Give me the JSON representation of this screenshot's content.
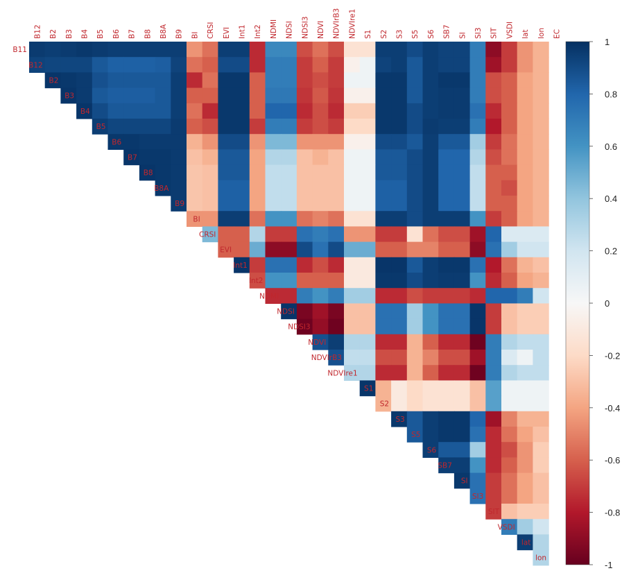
{
  "chart_data": {
    "type": "heatmap",
    "variables": [
      "B11",
      "B12",
      "B2",
      "B3",
      "B4",
      "B5",
      "B6",
      "B7",
      "B8",
      "B8A",
      "B9",
      "BI",
      "CRSI",
      "EVI",
      "Int1",
      "Int2",
      "NDMI",
      "NDSI",
      "NDSI3",
      "NDVI",
      "NDVIrB3",
      "NDVIre1",
      "S1",
      "S2",
      "S3",
      "S5",
      "S6",
      "SB7",
      "SI",
      "SI3",
      "SIT",
      "VSDI",
      "lat",
      "lon",
      "EC"
    ],
    "row_labels": [
      "B11",
      "B12",
      "B2",
      "B3",
      "B4",
      "B5",
      "B6",
      "B7",
      "B8",
      "B8A",
      "B9",
      "BI",
      "CRSI",
      "EVI",
      "Int1",
      "Int2",
      "NDMI",
      "NDSI",
      "NDSI3",
      "NDVI",
      "NDVIrB3",
      "NDVIre1",
      "S1",
      "S2",
      "S3",
      "S5",
      "S6",
      "SB7",
      "SI",
      "SI3",
      "SIT",
      "VSDI",
      "lat",
      "lon"
    ],
    "col_labels": [
      "B12",
      "B2",
      "B3",
      "B4",
      "B5",
      "B6",
      "B7",
      "B8",
      "B8A",
      "B9",
      "BI",
      "CRSI",
      "EVI",
      "Int1",
      "Int2",
      "NDMI",
      "NDSI",
      "NDSI3",
      "NDVI",
      "NDVIrB3",
      "NDVIre1",
      "S1",
      "S2",
      "S3",
      "S5",
      "S6",
      "SB7",
      "SI",
      "SI3",
      "SIT",
      "VSDI",
      "lat",
      "lon",
      "EC"
    ],
    "layout": "upper-triangle",
    "colorbar": {
      "range": [
        -1,
        1
      ],
      "ticks": [
        "1",
        "0.8",
        "0.6",
        "0.4",
        "0.2",
        "0",
        "-0.2",
        "-0.4",
        "-0.6",
        "-0.8",
        "-1"
      ]
    },
    "colors": {
      "negative": "#67001f",
      "zero": "#f7f7f7",
      "positive": "#053061"
    },
    "values": [
      [
        0.96,
        0.95,
        0.96,
        0.97,
        0.96,
        0.95,
        0.95,
        0.95,
        0.95,
        0.95,
        -0.45,
        -0.55,
        0.95,
        0.95,
        -0.75,
        0.65,
        0.65,
        -0.65,
        -0.55,
        -0.65,
        -0.15,
        -0.15,
        0.95,
        0.95,
        0.9,
        0.95,
        0.93,
        0.93,
        0.7,
        -0.9,
        -0.7,
        -0.45,
        -0.35
      ],
      [
        0.93,
        0.92,
        0.92,
        0.92,
        0.85,
        0.82,
        0.82,
        0.82,
        0.83,
        0.93,
        -0.55,
        -0.6,
        0.9,
        0.9,
        -0.75,
        0.7,
        0.7,
        -0.7,
        -0.6,
        -0.7,
        -0.05,
        0.05,
        0.93,
        0.95,
        0.85,
        0.95,
        0.93,
        0.93,
        0.7,
        -0.85,
        -0.7,
        -0.45,
        -0.35
      ],
      [
        null,
        0.98,
        0.97,
        0.96,
        0.88,
        0.85,
        0.85,
        0.85,
        0.85,
        0.95,
        -0.75,
        -0.55,
        0.97,
        0.97,
        -0.6,
        0.7,
        0.7,
        -0.7,
        -0.65,
        -0.7,
        0.05,
        0.05,
        0.97,
        0.97,
        0.85,
        0.95,
        0.97,
        0.97,
        0.7,
        -0.65,
        -0.6,
        -0.4,
        -0.35
      ],
      [
        null,
        null,
        0.98,
        0.96,
        0.85,
        0.83,
        0.83,
        0.83,
        0.85,
        0.95,
        -0.6,
        -0.6,
        0.97,
        0.97,
        -0.6,
        0.72,
        0.72,
        -0.72,
        -0.62,
        -0.72,
        -0.05,
        -0.05,
        0.97,
        0.97,
        0.85,
        0.95,
        0.96,
        0.96,
        0.7,
        -0.65,
        -0.6,
        -0.4,
        -0.35
      ],
      [
        null,
        null,
        null,
        0.98,
        0.9,
        0.85,
        0.85,
        0.85,
        0.85,
        0.95,
        -0.55,
        -0.75,
        0.97,
        0.97,
        -0.6,
        0.8,
        0.8,
        -0.75,
        -0.65,
        -0.75,
        -0.25,
        -0.25,
        0.97,
        0.97,
        0.9,
        0.95,
        0.96,
        0.96,
        0.75,
        -0.75,
        -0.6,
        -0.4,
        -0.35
      ],
      [
        null,
        null,
        null,
        null,
        0.95,
        0.92,
        0.92,
        0.92,
        0.92,
        0.96,
        -0.6,
        -0.65,
        0.97,
        0.97,
        -0.7,
        0.7,
        0.7,
        -0.7,
        -0.65,
        -0.7,
        -0.2,
        -0.2,
        0.97,
        0.97,
        0.9,
        0.96,
        0.95,
        0.95,
        0.7,
        -0.8,
        -0.6,
        -0.4,
        -0.35
      ],
      [
        null,
        null,
        null,
        null,
        null,
        0.97,
        0.97,
        0.96,
        0.96,
        0.96,
        -0.35,
        -0.45,
        0.9,
        0.9,
        -0.45,
        0.45,
        0.45,
        -0.45,
        -0.45,
        -0.45,
        -0.05,
        -0.05,
        0.9,
        0.9,
        0.85,
        0.95,
        0.85,
        0.85,
        0.35,
        -0.7,
        -0.55,
        -0.4,
        -0.35
      ],
      [
        null,
        null,
        null,
        null,
        null,
        null,
        0.98,
        0.97,
        0.97,
        0.96,
        -0.3,
        -0.35,
        0.85,
        0.85,
        -0.4,
        0.3,
        0.3,
        -0.3,
        -0.35,
        -0.3,
        0.05,
        0.05,
        0.85,
        0.85,
        0.9,
        0.95,
        0.8,
        0.8,
        0.3,
        -0.65,
        -0.55,
        -0.4,
        -0.35
      ],
      [
        null,
        null,
        null,
        null,
        null,
        null,
        null,
        0.98,
        0.97,
        0.96,
        -0.28,
        -0.3,
        0.85,
        0.85,
        -0.4,
        0.25,
        0.25,
        -0.3,
        -0.3,
        -0.3,
        0.05,
        0.05,
        0.85,
        0.85,
        0.9,
        0.95,
        0.8,
        0.8,
        0.25,
        -0.6,
        -0.6,
        -0.4,
        -0.35
      ],
      [
        null,
        null,
        null,
        null,
        null,
        null,
        null,
        null,
        0.97,
        0.96,
        -0.28,
        -0.3,
        0.82,
        0.82,
        -0.4,
        0.25,
        0.25,
        -0.3,
        -0.3,
        -0.3,
        0.05,
        0.05,
        0.82,
        0.82,
        0.9,
        0.95,
        0.8,
        0.8,
        0.25,
        -0.6,
        -0.65,
        -0.4,
        -0.35
      ],
      [
        null,
        null,
        null,
        null,
        null,
        null,
        null,
        null,
        null,
        0.96,
        -0.28,
        -0.3,
        0.82,
        0.82,
        -0.4,
        0.25,
        0.25,
        -0.3,
        -0.3,
        -0.3,
        0.05,
        0.05,
        0.82,
        0.82,
        0.9,
        0.95,
        0.8,
        0.8,
        0.25,
        -0.6,
        -0.6,
        -0.4,
        -0.35
      ],
      [
        null,
        null,
        null,
        null,
        null,
        null,
        null,
        null,
        null,
        null,
        -0.45,
        -0.45,
        0.95,
        0.95,
        -0.55,
        0.6,
        0.6,
        -0.55,
        -0.5,
        -0.55,
        -0.15,
        -0.15,
        0.95,
        0.95,
        0.9,
        0.95,
        0.95,
        0.95,
        0.6,
        -0.7,
        -0.6,
        -0.4,
        -0.35
      ],
      [
        null,
        null,
        null,
        null,
        null,
        null,
        null,
        null,
        null,
        null,
        null,
        0.45,
        -0.6,
        -0.6,
        0.3,
        -0.7,
        -0.7,
        0.75,
        0.7,
        0.75,
        -0.45,
        -0.45,
        -0.7,
        -0.7,
        -0.15,
        -0.55,
        -0.65,
        -0.65,
        -0.85,
        0.8,
        0.15,
        0.15,
        0.15
      ],
      [
        null,
        null,
        null,
        null,
        null,
        null,
        null,
        null,
        null,
        null,
        null,
        null,
        -0.6,
        -0.6,
        0.5,
        -0.9,
        -0.9,
        0.9,
        0.75,
        0.9,
        0.5,
        0.5,
        -0.6,
        -0.6,
        -0.5,
        -0.5,
        -0.6,
        -0.6,
        -0.9,
        0.75,
        0.35,
        0.2,
        0.2
      ],
      [
        null,
        null,
        null,
        null,
        null,
        null,
        null,
        null,
        null,
        null,
        null,
        null,
        null,
        0.98,
        -0.7,
        0.75,
        0.75,
        -0.75,
        -0.65,
        -0.75,
        -0.1,
        -0.1,
        0.98,
        0.98,
        0.85,
        0.95,
        0.97,
        0.97,
        0.75,
        -0.8,
        -0.55,
        -0.35,
        -0.3
      ],
      [
        null,
        null,
        null,
        null,
        null,
        null,
        null,
        null,
        null,
        null,
        null,
        null,
        null,
        null,
        -0.65,
        0.6,
        0.6,
        -0.6,
        -0.6,
        -0.6,
        -0.1,
        -0.1,
        0.97,
        0.97,
        0.9,
        0.95,
        0.96,
        0.96,
        0.6,
        -0.75,
        -0.6,
        -0.4,
        -0.35
      ],
      [
        null,
        null,
        null,
        null,
        null,
        null,
        null,
        null,
        null,
        null,
        null,
        null,
        null,
        null,
        null,
        -0.75,
        -0.75,
        0.7,
        0.6,
        0.7,
        0.35,
        0.35,
        -0.75,
        -0.75,
        -0.65,
        -0.7,
        -0.7,
        -0.7,
        -0.75,
        0.8,
        0.8,
        0.7,
        0.2
      ],
      [
        null,
        null,
        null,
        null,
        null,
        null,
        null,
        null,
        null,
        null,
        null,
        null,
        null,
        null,
        null,
        null,
        0.98,
        -0.95,
        -0.85,
        -0.95,
        -0.3,
        -0.3,
        0.75,
        0.75,
        0.35,
        0.6,
        0.75,
        0.75,
        0.98,
        -0.7,
        -0.3,
        -0.25,
        -0.25
      ],
      [
        null,
        null,
        null,
        null,
        null,
        null,
        null,
        null,
        null,
        null,
        null,
        null,
        null,
        null,
        null,
        null,
        null,
        -0.98,
        -0.88,
        -0.98,
        -0.3,
        -0.3,
        0.75,
        0.75,
        0.35,
        0.6,
        0.75,
        0.75,
        0.98,
        -0.7,
        -0.3,
        -0.25,
        -0.25
      ],
      [
        null,
        null,
        null,
        null,
        null,
        null,
        null,
        null,
        null,
        null,
        null,
        null,
        null,
        null,
        null,
        null,
        null,
        null,
        0.88,
        0.95,
        0.3,
        0.3,
        -0.75,
        -0.75,
        -0.35,
        -0.6,
        -0.75,
        -0.75,
        -0.98,
        0.7,
        0.3,
        0.25,
        0.25
      ],
      [
        null,
        null,
        null,
        null,
        null,
        null,
        null,
        null,
        null,
        null,
        null,
        null,
        null,
        null,
        null,
        null,
        null,
        null,
        null,
        0.88,
        0.25,
        0.25,
        -0.65,
        -0.65,
        -0.35,
        -0.5,
        -0.65,
        -0.65,
        -0.85,
        0.7,
        0.15,
        0.05,
        0.25
      ],
      [
        null,
        null,
        null,
        null,
        null,
        null,
        null,
        null,
        null,
        null,
        null,
        null,
        null,
        null,
        null,
        null,
        null,
        null,
        null,
        null,
        0.3,
        0.3,
        -0.75,
        -0.75,
        -0.35,
        -0.6,
        -0.75,
        -0.75,
        -0.98,
        0.7,
        0.3,
        0.25,
        0.25
      ],
      [
        null,
        null,
        null,
        null,
        null,
        null,
        null,
        null,
        null,
        null,
        null,
        null,
        null,
        null,
        null,
        null,
        null,
        null,
        null,
        null,
        null,
        0.98,
        -0.35,
        -0.1,
        -0.2,
        -0.15,
        -0.15,
        -0.15,
        -0.3,
        0.55,
        0.05,
        0.05,
        0.05
      ],
      [
        null,
        null,
        null,
        null,
        null,
        null,
        null,
        null,
        null,
        null,
        null,
        null,
        null,
        null,
        null,
        null,
        null,
        null,
        null,
        null,
        null,
        null,
        -0.35,
        -0.1,
        -0.2,
        -0.15,
        -0.15,
        -0.15,
        -0.3,
        0.55,
        0.05,
        0.05,
        0.05
      ],
      [
        null,
        null,
        null,
        null,
        null,
        null,
        null,
        null,
        null,
        null,
        null,
        null,
        null,
        null,
        null,
        null,
        null,
        null,
        null,
        null,
        null,
        null,
        null,
        0.97,
        0.85,
        0.95,
        0.97,
        0.97,
        0.8,
        -0.85,
        -0.5,
        -0.35,
        -0.35
      ],
      [
        null,
        null,
        null,
        null,
        null,
        null,
        null,
        null,
        null,
        null,
        null,
        null,
        null,
        null,
        null,
        null,
        null,
        null,
        null,
        null,
        null,
        null,
        null,
        null,
        0.85,
        0.95,
        0.97,
        0.97,
        0.75,
        -0.75,
        -0.55,
        -0.4,
        -0.3
      ],
      [
        null,
        null,
        null,
        null,
        null,
        null,
        null,
        null,
        null,
        null,
        null,
        null,
        null,
        null,
        null,
        null,
        null,
        null,
        null,
        null,
        null,
        null,
        null,
        null,
        null,
        0.95,
        0.85,
        0.85,
        0.35,
        -0.75,
        -0.65,
        -0.45,
        -0.25
      ],
      [
        null,
        null,
        null,
        null,
        null,
        null,
        null,
        null,
        null,
        null,
        null,
        null,
        null,
        null,
        null,
        null,
        null,
        null,
        null,
        null,
        null,
        null,
        null,
        null,
        null,
        null,
        0.95,
        0.95,
        0.6,
        -0.75,
        -0.6,
        -0.45,
        -0.25
      ],
      [
        null,
        null,
        null,
        null,
        null,
        null,
        null,
        null,
        null,
        null,
        null,
        null,
        null,
        null,
        null,
        null,
        null,
        null,
        null,
        null,
        null,
        null,
        null,
        null,
        null,
        null,
        null,
        0.97,
        0.75,
        -0.7,
        -0.55,
        -0.4,
        -0.3
      ],
      [
        null,
        null,
        null,
        null,
        null,
        null,
        null,
        null,
        null,
        null,
        null,
        null,
        null,
        null,
        null,
        null,
        null,
        null,
        null,
        null,
        null,
        null,
        null,
        null,
        null,
        null,
        null,
        null,
        0.75,
        -0.7,
        -0.55,
        -0.4,
        -0.3
      ],
      [
        null,
        null,
        null,
        null,
        null,
        null,
        null,
        null,
        null,
        null,
        null,
        null,
        null,
        null,
        null,
        null,
        null,
        null,
        null,
        null,
        null,
        null,
        null,
        null,
        null,
        null,
        null,
        null,
        null,
        -0.7,
        -0.3,
        -0.25,
        -0.25
      ],
      [
        null,
        null,
        null,
        null,
        null,
        null,
        null,
        null,
        null,
        null,
        null,
        null,
        null,
        null,
        null,
        null,
        null,
        null,
        null,
        null,
        null,
        null,
        null,
        null,
        null,
        null,
        null,
        null,
        null,
        null,
        0.7,
        0.35,
        0.2
      ],
      [
        null,
        null,
        null,
        null,
        null,
        null,
        null,
        null,
        null,
        null,
        null,
        null,
        null,
        null,
        null,
        null,
        null,
        null,
        null,
        null,
        null,
        null,
        null,
        null,
        null,
        null,
        null,
        null,
        null,
        null,
        null,
        0.95,
        0.3
      ],
      [
        null,
        null,
        null,
        null,
        null,
        null,
        null,
        null,
        null,
        null,
        null,
        null,
        null,
        null,
        null,
        null,
        null,
        null,
        null,
        null,
        null,
        null,
        null,
        null,
        null,
        null,
        null,
        null,
        null,
        null,
        null,
        null,
        0.3
      ]
    ]
  }
}
